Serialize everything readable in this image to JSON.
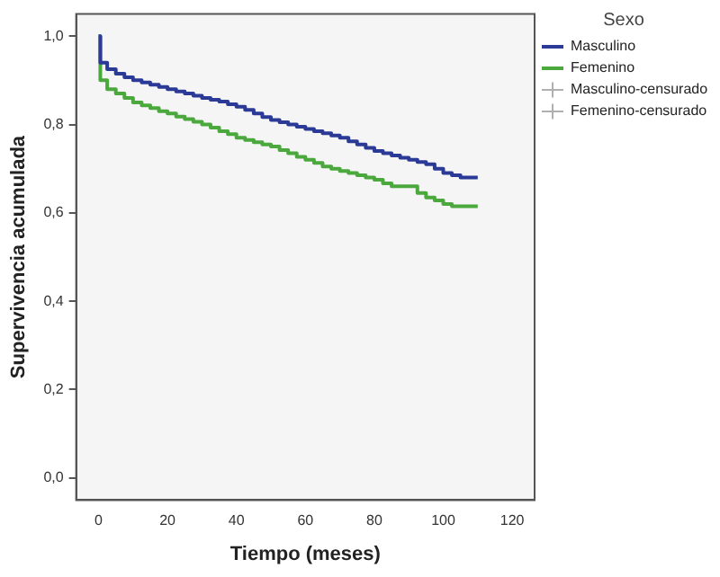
{
  "chart_data": {
    "type": "step",
    "xlabel": "Tiempo (meses)",
    "ylabel": "Supervivencia acumulada",
    "legend_title": "Sexo",
    "legend": "top right",
    "xlim": [
      -6.5,
      126.5
    ],
    "xticks": [
      0,
      20,
      40,
      60,
      80,
      100,
      120
    ],
    "ylim": [
      -0.05,
      1.05
    ],
    "yticks": [
      {
        "value": 0,
        "label": "0,0"
      },
      {
        "value": 0.2,
        "label": "0,2"
      },
      {
        "value": 0.4,
        "label": "0,4"
      },
      {
        "value": 0.6,
        "label": "0,6"
      },
      {
        "value": 0.8,
        "label": "0,8"
      },
      {
        "value": 1,
        "label": "1,0"
      }
    ],
    "grid": false,
    "series": [
      {
        "name": "Masculino",
        "color": "#2b3a96",
        "x": [
          0,
          0.5,
          2.5,
          5,
          7.5,
          10,
          12.5,
          15,
          17.5,
          20,
          22.5,
          25,
          27.5,
          30,
          32.5,
          35,
          37.5,
          40,
          42.5,
          45,
          47.5,
          50,
          52.5,
          55,
          57.5,
          60,
          62.5,
          65,
          67.5,
          70,
          72.5,
          75,
          77.5,
          80,
          82.5,
          85,
          87.5,
          90,
          92.5,
          95,
          97.5,
          100,
          102.5,
          105,
          110
        ],
        "values": [
          1.0,
          0.94,
          0.925,
          0.915,
          0.907,
          0.9,
          0.895,
          0.89,
          0.885,
          0.88,
          0.875,
          0.87,
          0.865,
          0.86,
          0.856,
          0.852,
          0.846,
          0.84,
          0.833,
          0.825,
          0.817,
          0.81,
          0.805,
          0.8,
          0.795,
          0.79,
          0.785,
          0.78,
          0.775,
          0.77,
          0.762,
          0.755,
          0.747,
          0.74,
          0.735,
          0.73,
          0.725,
          0.72,
          0.715,
          0.71,
          0.7,
          0.69,
          0.685,
          0.68,
          0.68
        ]
      },
      {
        "name": "Femenino",
        "color": "#4aa83c",
        "x": [
          0,
          0.5,
          2.5,
          5,
          7.5,
          10,
          12.5,
          15,
          17.5,
          20,
          22.5,
          25,
          27.5,
          30,
          32.5,
          35,
          37.5,
          40,
          42.5,
          45,
          47.5,
          50,
          52.5,
          55,
          57.5,
          60,
          62.5,
          65,
          67.5,
          70,
          72.5,
          75,
          77.5,
          80,
          82.5,
          85,
          90,
          92.5,
          95,
          97.5,
          100,
          102.5,
          110
        ],
        "values": [
          1.0,
          0.9,
          0.88,
          0.87,
          0.86,
          0.85,
          0.843,
          0.837,
          0.83,
          0.825,
          0.818,
          0.812,
          0.806,
          0.8,
          0.793,
          0.785,
          0.778,
          0.77,
          0.765,
          0.76,
          0.755,
          0.75,
          0.742,
          0.735,
          0.727,
          0.72,
          0.713,
          0.705,
          0.7,
          0.695,
          0.69,
          0.685,
          0.68,
          0.675,
          0.667,
          0.66,
          0.66,
          0.645,
          0.635,
          0.628,
          0.62,
          0.615,
          0.615
        ]
      },
      {
        "name": "Masculino-censurado",
        "type": "scatter",
        "marker": "cross",
        "color": "#b0b0b0"
      },
      {
        "name": "Femenino-censurado",
        "type": "scatter",
        "marker": "cross",
        "color": "#b0b0b0"
      }
    ]
  }
}
